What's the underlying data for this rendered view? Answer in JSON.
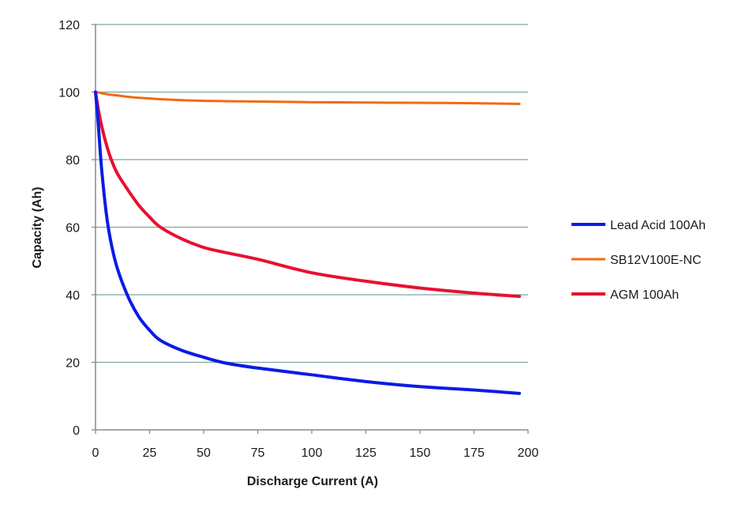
{
  "chart_data": {
    "type": "line",
    "title": "",
    "xlabel": "Discharge Current (A)",
    "ylabel": "Capacity (Ah)",
    "xlim": [
      0,
      200
    ],
    "ylim": [
      0,
      120
    ],
    "xticks": [
      0,
      25,
      50,
      75,
      100,
      125,
      150,
      175,
      200
    ],
    "yticks": [
      0,
      20,
      40,
      60,
      80,
      100,
      120
    ],
    "grid": "horizontal",
    "legend_position": "right",
    "x": [
      0,
      1,
      2,
      3,
      5,
      7,
      10,
      15,
      20,
      25,
      30,
      40,
      50,
      60,
      75,
      100,
      125,
      150,
      175,
      196
    ],
    "series": [
      {
        "name": "Lead Acid 100Ah",
        "color": "#0b1be6",
        "values": [
          100,
          93,
          84,
          76,
          64,
          56,
          48,
          39.5,
          33.5,
          29.5,
          26.5,
          23.5,
          21.5,
          19.8,
          18.3,
          16.3,
          14.3,
          12.8,
          11.8,
          10.8
        ]
      },
      {
        "name": "SB12V100E-NC",
        "color": "#f26b10",
        "values": [
          100,
          99.9,
          99.8,
          99.6,
          99.4,
          99.2,
          99.0,
          98.6,
          98.3,
          98.1,
          97.9,
          97.6,
          97.4,
          97.3,
          97.2,
          97.0,
          96.9,
          96.8,
          96.7,
          96.5
        ]
      },
      {
        "name": "AGM 100Ah",
        "color": "#e8102e",
        "values": [
          100,
          96,
          92.5,
          89.5,
          84.5,
          80.5,
          76,
          71,
          66.5,
          63,
          60,
          56.5,
          54,
          52.5,
          50.5,
          46.5,
          44,
          42,
          40.5,
          39.5
        ]
      }
    ]
  }
}
